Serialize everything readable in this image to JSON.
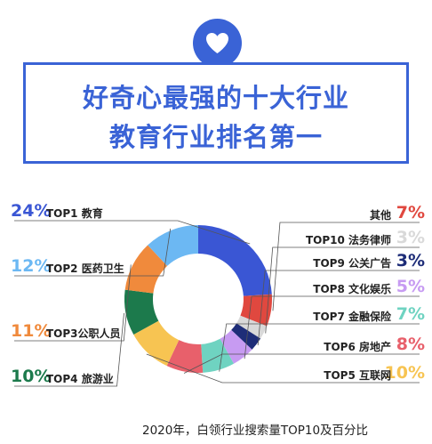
{
  "header": {
    "title_line1": "好奇心最强的十大行业",
    "title_line2": "教育行业排名第一",
    "badge_icon": "heart-icon"
  },
  "colors": {
    "accent": "#3a63d6"
  },
  "chart_data": {
    "type": "donut",
    "categories": [
      "TOP1 教育",
      "其他",
      "TOP10 法务律师",
      "TOP9 公关广告",
      "TOP8 文化娱乐",
      "TOP7 金融保险",
      "TOP6 房地产",
      "TOP5 互联网",
      "TOP4 旅游业",
      "TOP3公职人员",
      "TOP2 医药卫生"
    ],
    "values": [
      24,
      7,
      3,
      3,
      5,
      7,
      8,
      10,
      10,
      11,
      12
    ],
    "value_labels": [
      "24%",
      "7%",
      "3%",
      "3%",
      "5%",
      "7%",
      "8%",
      "10%",
      "10%",
      "11%",
      "12%"
    ],
    "colors": [
      "#3a56d4",
      "#e0483f",
      "#d9d9d9",
      "#1e2d78",
      "#c79bf2",
      "#6fd3c1",
      "#e8606b",
      "#f7c452",
      "#1c7a4c",
      "#f08a3c",
      "#6cb8f3"
    ],
    "caption": "2020年，白领行业搜索量TOP10及百分比"
  }
}
